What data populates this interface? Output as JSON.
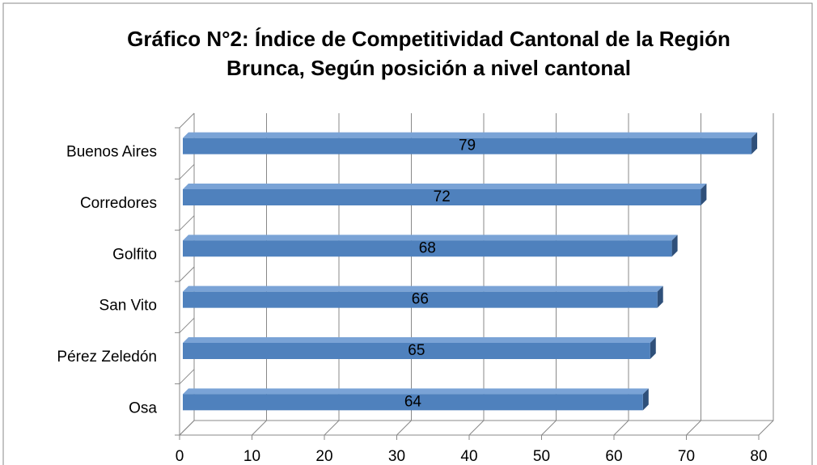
{
  "chart_data": {
    "type": "bar3d_horizontal",
    "title": "Gráfico N°2: Índice de Competitividad Cantonal de la Región",
    "subtitle": "Brunca, Según posición a nivel cantonal",
    "categories": [
      "Buenos Aires",
      "Corredores",
      "Golfito",
      "San Vito",
      "Pérez Zeledón",
      "Osa"
    ],
    "values": [
      79,
      72,
      68,
      66,
      65,
      64
    ],
    "color": "#4f81bd",
    "xlim": [
      0,
      80
    ],
    "xticks": [
      0,
      10,
      20,
      30,
      40,
      50,
      60,
      70,
      80
    ],
    "grid": true
  }
}
